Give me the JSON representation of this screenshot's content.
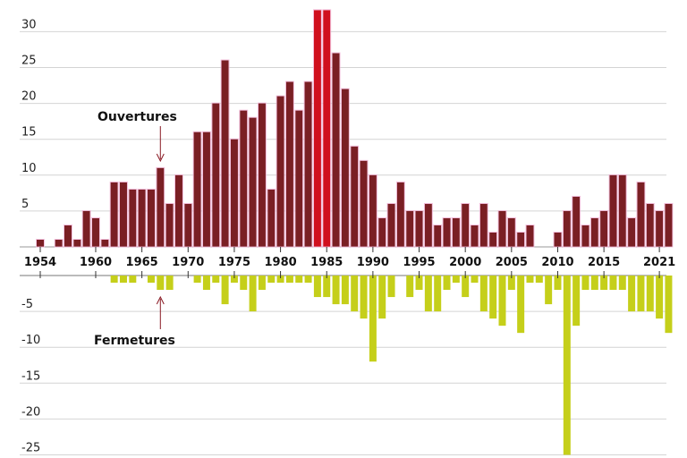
{
  "chart_data": {
    "type": "bar",
    "title": "",
    "xlabel": "",
    "ylabel": "",
    "ylim": [
      -25,
      33
    ],
    "yticks": [
      -25,
      -20,
      -15,
      -10,
      -5,
      5,
      10,
      15,
      20,
      25,
      30
    ],
    "xtick_labels": [
      "1954",
      "1960",
      "1965",
      "1970",
      "1975",
      "1980",
      "1985",
      "1990",
      "1995",
      "2000",
      "2005",
      "2010",
      "2015",
      "2021"
    ],
    "colors": {
      "positive_main": "#7a1f24",
      "positive_highlight": "#d0101e",
      "negative": "#c5cf1a",
      "grid": "#d4d4d4"
    },
    "x": [
      1954,
      1955,
      1956,
      1957,
      1958,
      1959,
      1960,
      1961,
      1962,
      1963,
      1964,
      1965,
      1966,
      1967,
      1968,
      1969,
      1970,
      1971,
      1972,
      1973,
      1974,
      1975,
      1976,
      1977,
      1978,
      1979,
      1980,
      1981,
      1982,
      1983,
      1984,
      1985,
      1986,
      1987,
      1988,
      1989,
      1990,
      1991,
      1992,
      1993,
      1994,
      1995,
      1996,
      1997,
      1998,
      1999,
      2000,
      2001,
      2002,
      2003,
      2004,
      2005,
      2006,
      2007,
      2008,
      2009,
      2010,
      2011,
      2012,
      2013,
      2014,
      2015,
      2016,
      2017,
      2018,
      2019,
      2020,
      2021,
      2022
    ],
    "series": [
      {
        "name": "Ouvertures",
        "values": [
          1,
          0,
          1,
          3,
          1,
          5,
          4,
          1,
          9,
          9,
          8,
          8,
          8,
          11,
          6,
          10,
          6,
          16,
          16,
          20,
          26,
          15,
          19,
          18,
          20,
          8,
          21,
          23,
          19,
          23,
          33,
          33,
          27,
          22,
          14,
          12,
          10,
          4,
          6,
          9,
          5,
          5,
          6,
          3,
          4,
          4,
          6,
          3,
          6,
          2,
          5,
          4,
          2,
          3,
          0,
          0,
          2,
          5,
          7,
          3,
          4,
          5,
          10,
          10,
          4,
          9,
          6,
          5,
          6
        ]
      },
      {
        "name": "Fermetures",
        "values": [
          0,
          0,
          0,
          0,
          0,
          0,
          0,
          0,
          -1,
          -1,
          -1,
          0,
          -1,
          -2,
          -2,
          0,
          0,
          -1,
          -2,
          -1,
          -4,
          -1,
          -2,
          -5,
          -2,
          -1,
          -1,
          -1,
          -1,
          -1,
          -3,
          -3,
          -4,
          -4,
          -5,
          -6,
          -12,
          -6,
          -3,
          0,
          -3,
          -2,
          -5,
          -5,
          -2,
          -1,
          -3,
          -1,
          -5,
          -6,
          -7,
          -2,
          -8,
          -1,
          -1,
          -4,
          -2,
          -25,
          -7,
          -2,
          -2,
          -2,
          -2,
          -2,
          -5,
          -5,
          -5,
          -6,
          -8
        ]
      }
    ],
    "annotations": [
      {
        "text": "Ouvertures",
        "target_year": 1967,
        "side": "top"
      },
      {
        "text": "Fermetures",
        "target_year": 1967,
        "side": "bottom"
      }
    ]
  }
}
